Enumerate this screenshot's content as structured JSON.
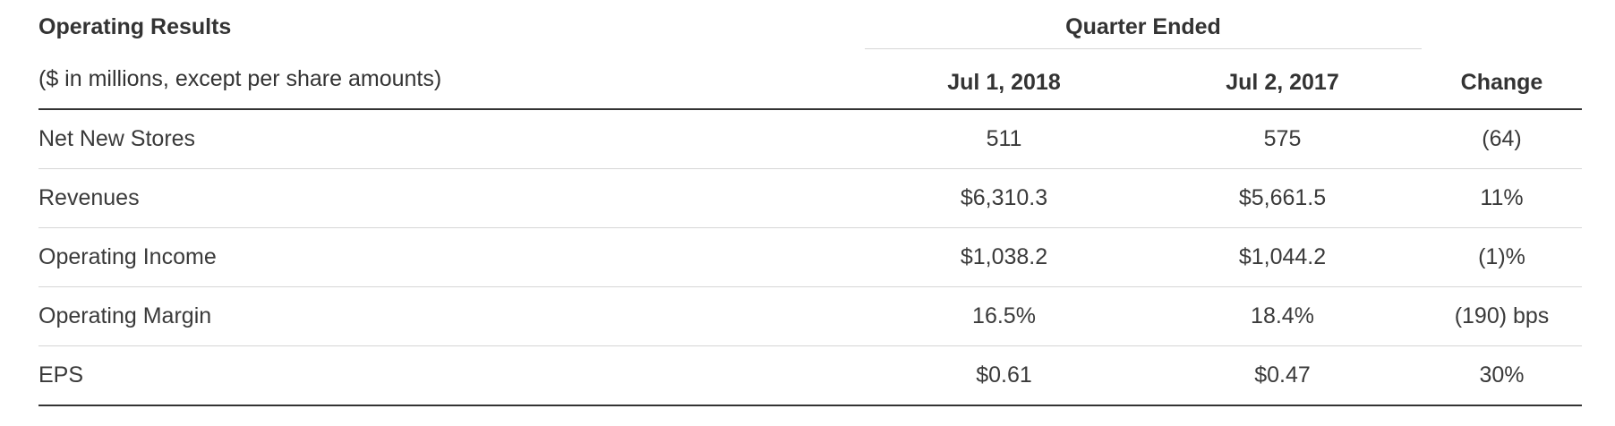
{
  "table": {
    "title": "Operating Results",
    "group_header": "Quarter Ended",
    "subtitle": "($ in millions, except per share amounts)",
    "columns": [
      "Jul 1, 2018",
      "Jul 2, 2017",
      "Change"
    ],
    "rows": [
      {
        "label": "Net New Stores",
        "q1": "511",
        "q2": "575",
        "change": "(64)"
      },
      {
        "label": "Revenues",
        "q1": "$6,310.3",
        "q2": "$5,661.5",
        "change": "11%"
      },
      {
        "label": "Operating Income",
        "q1": "$1,038.2",
        "q2": "$1,044.2",
        "change": "(1)%"
      },
      {
        "label": "Operating Margin",
        "q1": "16.5%",
        "q2": "18.4%",
        "change": "(190) bps"
      },
      {
        "label": "EPS",
        "q1": "$0.61",
        "q2": "$0.47",
        "change": "30%"
      }
    ]
  }
}
